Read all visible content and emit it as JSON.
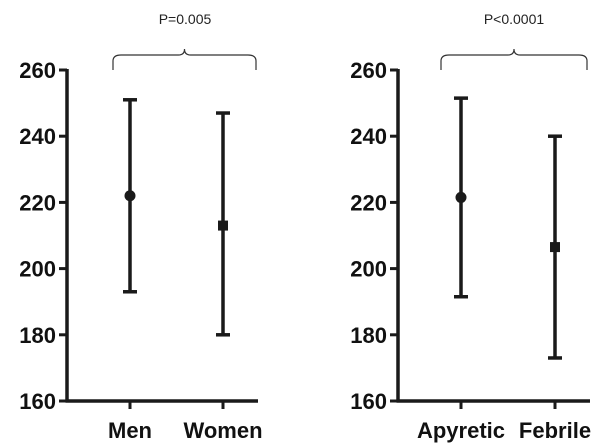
{
  "chart_data": [
    {
      "type": "errorbar",
      "categories": [
        "Men",
        "Women"
      ],
      "series": [
        {
          "points": [
            {
              "category": "Men",
              "marker": "circle",
              "mean": 222,
              "low": 193,
              "high": 251
            },
            {
              "category": "Women",
              "marker": "square",
              "mean": 213,
              "low": 180,
              "high": 247
            }
          ]
        }
      ],
      "ylim": [
        160,
        260
      ],
      "yticks": [
        "160",
        "180",
        "200",
        "220",
        "240",
        "260"
      ],
      "annotation": "P=0.005",
      "grid": false
    },
    {
      "type": "errorbar",
      "categories": [
        "Apyretic",
        "Febrile"
      ],
      "series": [
        {
          "points": [
            {
              "category": "Apyretic",
              "marker": "circle",
              "mean": 221.5,
              "low": 191.5,
              "high": 251.5
            },
            {
              "category": "Febrile",
              "marker": "square",
              "mean": 206.5,
              "low": 173,
              "high": 240
            }
          ]
        }
      ],
      "ylim": [
        160,
        260
      ],
      "yticks": [
        "160",
        "180",
        "200",
        "220",
        "240",
        "260"
      ],
      "annotation": "P<0.0001",
      "grid": false
    }
  ],
  "colors": {
    "ink": "#1a1a1a"
  }
}
